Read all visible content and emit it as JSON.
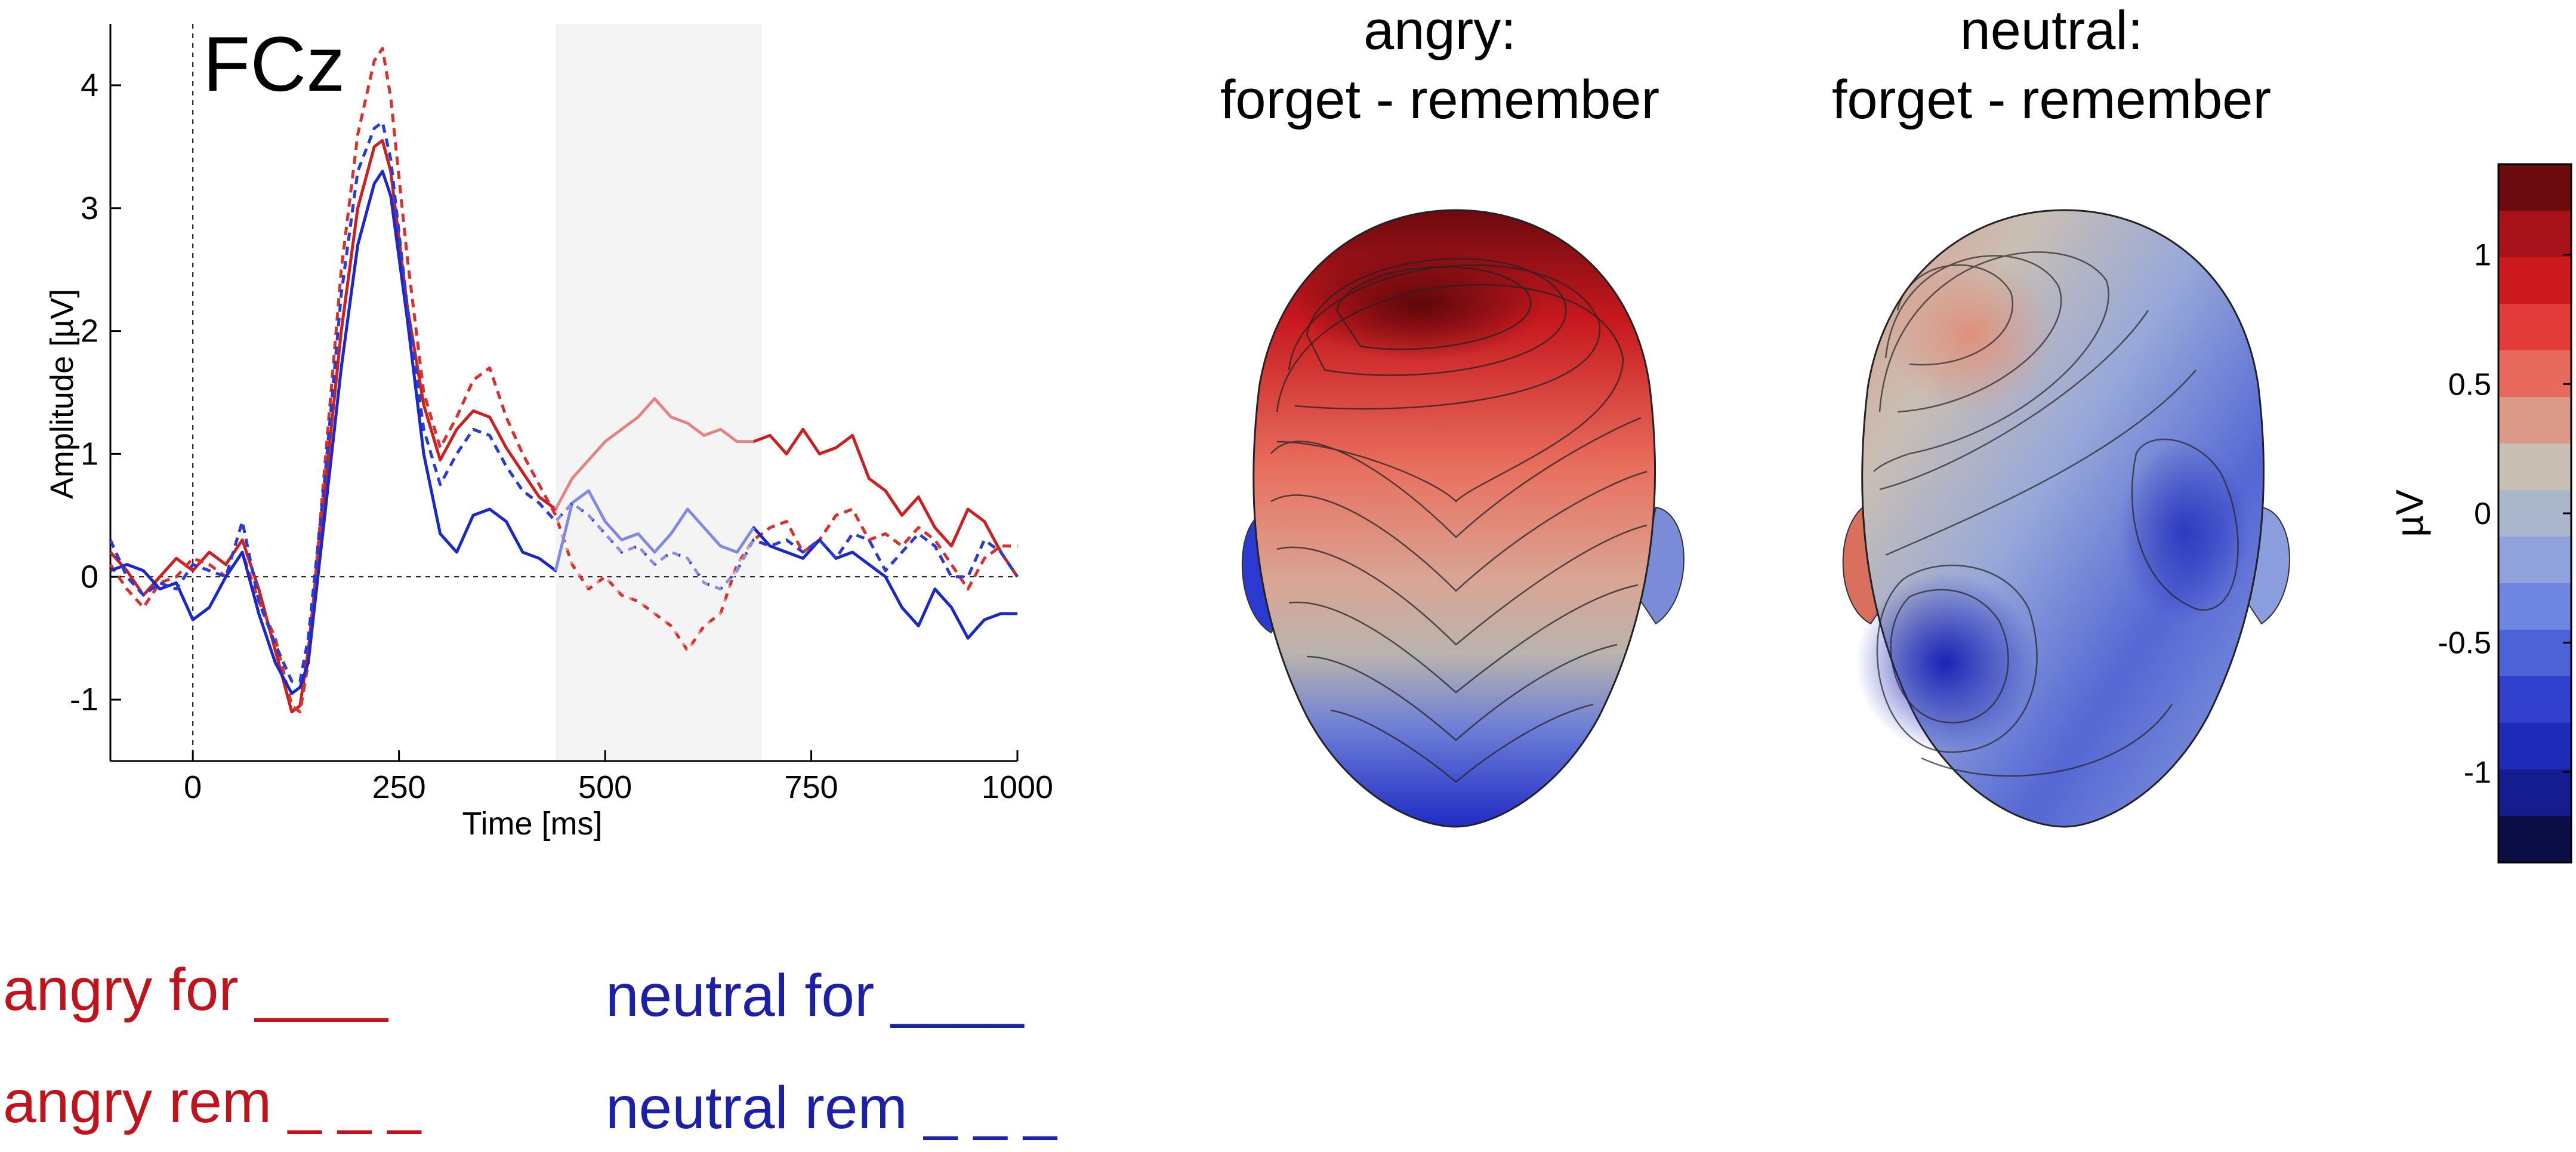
{
  "chart_data": [
    {
      "type": "line",
      "title": "FCz",
      "xlabel": "Time [ms]",
      "ylabel": "Amplitude [µV]",
      "xlim": [
        -100,
        1000
      ],
      "ylim": [
        -1.5,
        4.5
      ],
      "xticks": [
        0,
        250,
        500,
        750,
        1000
      ],
      "yticks": [
        -1,
        0,
        1,
        2,
        3,
        4
      ],
      "shaded_window": [
        440,
        690
      ],
      "series": [
        {
          "name": "angry for",
          "color": "#cc1f1f",
          "dash": "solid",
          "x": [
            -100,
            -80,
            -60,
            -40,
            -20,
            0,
            20,
            40,
            60,
            80,
            100,
            120,
            130,
            140,
            160,
            180,
            200,
            220,
            230,
            240,
            260,
            280,
            300,
            320,
            340,
            360,
            380,
            400,
            420,
            440,
            460,
            480,
            500,
            520,
            540,
            560,
            580,
            600,
            620,
            640,
            660,
            680,
            700,
            720,
            740,
            760,
            780,
            800,
            820,
            840,
            860,
            880,
            900,
            920,
            940,
            960,
            980,
            1000
          ],
          "values": [
            0.2,
            0.05,
            -0.15,
            0.0,
            0.15,
            0.05,
            0.2,
            0.1,
            0.3,
            -0.1,
            -0.6,
            -1.1,
            -1.05,
            -0.6,
            0.7,
            2.0,
            3.0,
            3.5,
            3.55,
            3.3,
            2.2,
            1.4,
            0.95,
            1.2,
            1.35,
            1.3,
            1.05,
            0.85,
            0.65,
            0.55,
            0.8,
            0.95,
            1.1,
            1.2,
            1.3,
            1.45,
            1.3,
            1.25,
            1.15,
            1.2,
            1.1,
            1.1,
            1.15,
            1.0,
            1.2,
            1.0,
            1.05,
            1.15,
            0.8,
            0.7,
            0.5,
            0.65,
            0.4,
            0.25,
            0.55,
            0.45,
            0.2,
            0.0
          ]
        },
        {
          "name": "angry rem",
          "color": "#d9302c",
          "dash": "dashed",
          "x": [
            -100,
            -80,
            -60,
            -40,
            -20,
            0,
            20,
            40,
            60,
            80,
            100,
            120,
            130,
            140,
            160,
            180,
            200,
            220,
            230,
            240,
            260,
            280,
            300,
            320,
            340,
            360,
            380,
            400,
            420,
            440,
            460,
            480,
            500,
            520,
            540,
            560,
            580,
            600,
            620,
            640,
            660,
            680,
            700,
            720,
            740,
            760,
            780,
            800,
            820,
            840,
            860,
            880,
            900,
            920,
            940,
            960,
            980,
            1000
          ],
          "values": [
            0.1,
            -0.1,
            -0.25,
            -0.05,
            0.0,
            0.15,
            0.1,
            0.0,
            0.2,
            -0.2,
            -0.5,
            -1.05,
            -1.1,
            -0.7,
            0.9,
            2.5,
            3.6,
            4.2,
            4.3,
            3.9,
            2.6,
            1.5,
            1.05,
            1.3,
            1.6,
            1.7,
            1.3,
            1.0,
            0.75,
            0.5,
            0.1,
            -0.1,
            0.0,
            -0.15,
            -0.2,
            -0.3,
            -0.4,
            -0.6,
            -0.4,
            -0.3,
            0.1,
            0.3,
            0.4,
            0.45,
            0.2,
            0.3,
            0.5,
            0.55,
            0.3,
            0.35,
            0.25,
            0.4,
            0.3,
            0.1,
            -0.1,
            0.15,
            0.25,
            0.25
          ]
        },
        {
          "name": "neutral for",
          "color": "#1a28c8",
          "dash": "solid",
          "x": [
            -100,
            -80,
            -60,
            -40,
            -20,
            0,
            20,
            40,
            60,
            80,
            100,
            120,
            130,
            140,
            160,
            180,
            200,
            220,
            230,
            240,
            260,
            280,
            300,
            320,
            340,
            360,
            380,
            400,
            420,
            440,
            460,
            480,
            500,
            520,
            540,
            560,
            580,
            600,
            620,
            640,
            660,
            680,
            700,
            720,
            740,
            760,
            780,
            800,
            820,
            840,
            860,
            880,
            900,
            920,
            940,
            960,
            980,
            1000
          ],
          "values": [
            0.05,
            0.1,
            0.05,
            -0.1,
            -0.05,
            -0.35,
            -0.25,
            0.0,
            0.2,
            -0.3,
            -0.7,
            -0.95,
            -0.9,
            -0.7,
            0.5,
            1.7,
            2.7,
            3.2,
            3.3,
            3.1,
            2.1,
            1.0,
            0.35,
            0.2,
            0.5,
            0.55,
            0.45,
            0.2,
            0.15,
            0.05,
            0.6,
            0.7,
            0.45,
            0.3,
            0.35,
            0.2,
            0.35,
            0.55,
            0.4,
            0.25,
            0.2,
            0.4,
            0.25,
            0.2,
            0.15,
            0.3,
            0.15,
            0.2,
            0.1,
            0.0,
            -0.25,
            -0.4,
            -0.1,
            -0.25,
            -0.5,
            -0.35,
            -0.3,
            -0.3
          ]
        },
        {
          "name": "neutral rem",
          "color": "#2a3ad4",
          "dash": "dashed",
          "x": [
            -100,
            -80,
            -60,
            -40,
            -20,
            0,
            20,
            40,
            60,
            80,
            100,
            120,
            130,
            140,
            160,
            180,
            200,
            220,
            230,
            240,
            260,
            280,
            300,
            320,
            340,
            360,
            380,
            400,
            420,
            440,
            460,
            480,
            500,
            520,
            540,
            560,
            580,
            600,
            620,
            640,
            660,
            680,
            700,
            720,
            740,
            760,
            780,
            800,
            820,
            840,
            860,
            880,
            900,
            920,
            940,
            960,
            980,
            1000
          ],
          "values": [
            0.3,
            0.0,
            -0.15,
            -0.05,
            -0.1,
            0.1,
            0.05,
            0.0,
            0.45,
            -0.2,
            -0.55,
            -0.85,
            -0.85,
            -0.5,
            0.8,
            2.3,
            3.3,
            3.65,
            3.7,
            3.4,
            2.2,
            1.2,
            0.75,
            1.0,
            1.2,
            1.15,
            0.9,
            0.7,
            0.6,
            0.45,
            0.6,
            0.5,
            0.35,
            0.2,
            0.25,
            0.1,
            0.2,
            0.15,
            -0.05,
            -0.1,
            0.05,
            0.3,
            0.25,
            0.3,
            0.2,
            0.3,
            0.15,
            0.35,
            0.3,
            0.05,
            0.2,
            0.35,
            0.25,
            0.0,
            0.0,
            0.3,
            0.2,
            0.0
          ]
        }
      ]
    },
    {
      "type": "heatmap",
      "topomaps": [
        {
          "title_line1": "angry:",
          "title_line2": "forget  - remember"
        },
        {
          "title_line1": "neutral:",
          "title_line2": "forget  - remember"
        }
      ],
      "colorbar": {
        "label": "µV",
        "min": -1.35,
        "max": 1.35,
        "ticks": [
          "1",
          "0.5",
          "0",
          "-0.5",
          "-1"
        ],
        "tick_values": [
          1,
          0.5,
          0,
          -0.5,
          -1
        ],
        "colors": [
          "#6b0a0f",
          "#a8131b",
          "#cc1a1f",
          "#e33a3a",
          "#e86a5e",
          "#dc9a88",
          "#c7bfb3",
          "#a9b6cc",
          "#8fa2dc",
          "#6f86e0",
          "#4e62d8",
          "#3040cc",
          "#1e2bb8",
          "#141c8f",
          "#0b0e45"
        ]
      }
    }
  ],
  "legend": {
    "angry_for": "angry for ____",
    "angry_rem": "angry rem _ _ _",
    "neutral_for": "neutral for ____",
    "neutral_rem": "neutral rem _ _ _",
    "angry_color": "#c0141c",
    "neutral_color": "#1c20a8"
  }
}
